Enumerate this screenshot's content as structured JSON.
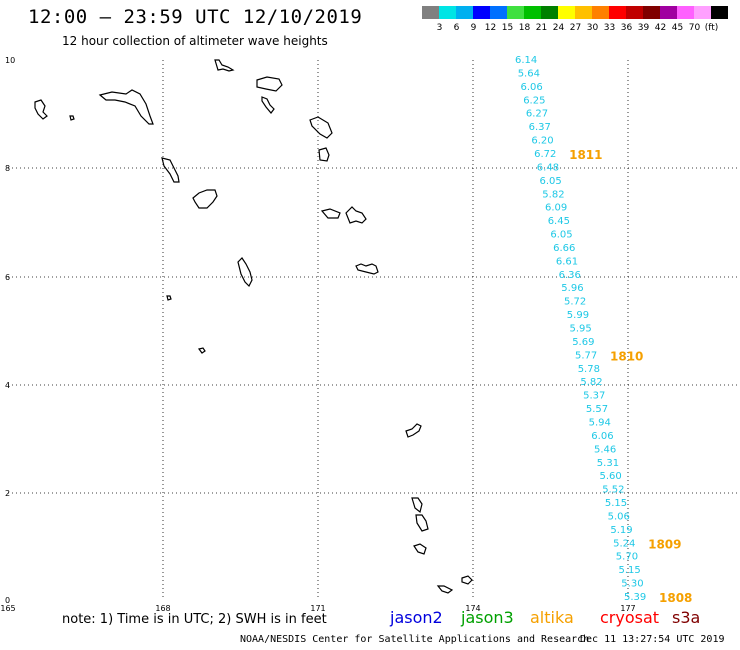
{
  "title": "12:00 — 23:59 UTC 12/10/2019",
  "subtitle": "12 hour collection of altimeter wave heights",
  "scale": {
    "colors": [
      "#808080",
      "#00e5e5",
      "#00b0f0",
      "#0000ff",
      "#0070ff",
      "#40e040",
      "#00c000",
      "#008000",
      "#ffff00",
      "#ffc000",
      "#ff8000",
      "#ff0000",
      "#c00000",
      "#800000",
      "#a000a0",
      "#ff60ff",
      "#ffa0ff",
      "#000000"
    ],
    "labels": [
      "3",
      "6",
      "9",
      "12",
      "15",
      "18",
      "21",
      "24",
      "27",
      "30",
      "33",
      "36",
      "39",
      "42",
      "45",
      "70",
      "(ft)"
    ]
  },
  "axes": {
    "y_ticks": [
      "10",
      "8",
      "6",
      "4",
      "2",
      "0"
    ],
    "x_ticks": [
      "165",
      "168",
      "171",
      "174",
      "177"
    ]
  },
  "track": {
    "color": "#1ec8e6",
    "swh_values": [
      "6.14",
      "5.64",
      "6.06",
      "6.25",
      "6.27",
      "6.37",
      "6.20",
      "6.72",
      "6.48",
      "6.05",
      "5.82",
      "6.09",
      "6.45",
      "6.05",
      "6.66",
      "6.61",
      "6.36",
      "5.96",
      "5.72",
      "5.99",
      "5.95",
      "5.69",
      "5.77",
      "5.78",
      "5.82",
      "5.37",
      "5.57",
      "5.94",
      "6.06",
      "5.46",
      "5.31",
      "5.60",
      "5.52",
      "5.15",
      "5.06",
      "5.19",
      "5.24",
      "5.70",
      "5.15",
      "5.30",
      "5.39"
    ],
    "time_labels": [
      {
        "text": "1811",
        "row": 7
      },
      {
        "text": "1810",
        "row": 22
      },
      {
        "text": "1809",
        "row": 36
      },
      {
        "text": "1808",
        "row": 40
      }
    ],
    "time_color": "#f5a000"
  },
  "footer": {
    "note": "note: 1) Time is in UTC; 2) SWH is in feet",
    "satellites": [
      {
        "name": "jason2",
        "color": "#0000dd"
      },
      {
        "name": "jason3",
        "color": "#00a000"
      },
      {
        "name": "altika",
        "color": "#f5a000"
      },
      {
        "name": "cryosat",
        "color": "#ff0000"
      },
      {
        "name": "s3a",
        "color": "#800000"
      }
    ],
    "credit": "NOAA/NESDIS Center for Satellite Applications and Research",
    "timestamp": "Dec 11 13:27:54 UTC 2019"
  }
}
